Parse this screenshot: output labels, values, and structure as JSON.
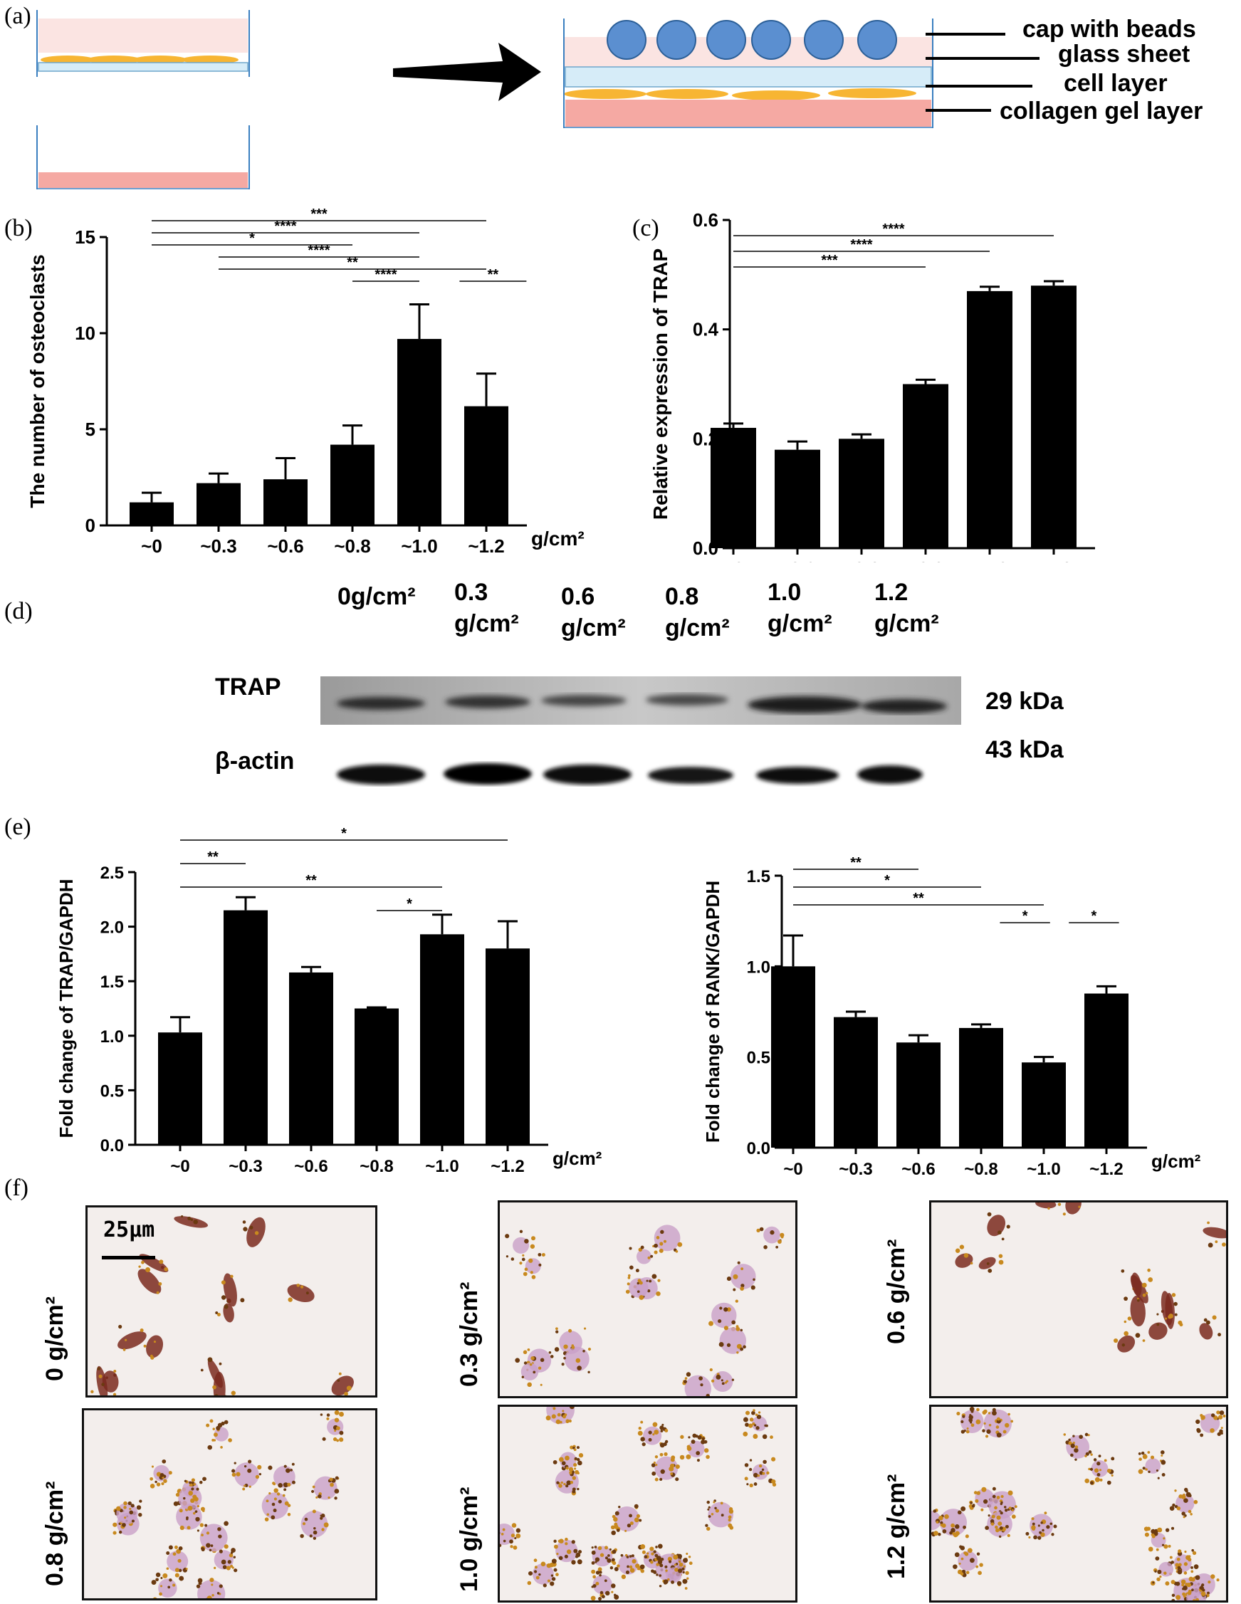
{
  "panels": {
    "a": "(a)",
    "b": "(b)",
    "c": "(c)",
    "d": "(d)",
    "e": "(e)",
    "f": "(f)"
  },
  "diagram": {
    "labels": [
      "cap with beads",
      "glass sheet",
      "cell layer",
      "collagen gel layer"
    ],
    "colors": {
      "bead": "#5b8fd0",
      "cell": "#f7b533",
      "gel": "#f5a9a3",
      "pink": "#fbe4e2"
    }
  },
  "chart_data": [
    {
      "id": "b",
      "type": "bar",
      "ylabel": "The number of osteoclasts",
      "unit": "g/cm²",
      "categories": [
        "~0",
        "~0.3",
        "~0.6",
        "~0.8",
        "~1.0",
        "~1.2"
      ],
      "values": [
        1.2,
        2.2,
        2.4,
        4.2,
        9.7,
        6.2
      ],
      "errors": [
        0.5,
        0.5,
        1.1,
        1.0,
        1.8,
        1.7
      ],
      "ylim": [
        0,
        15
      ],
      "yticks": [
        0,
        5,
        10,
        15
      ],
      "tick_labels": [
        "0",
        "5",
        "10",
        "15"
      ],
      "sig": [
        {
          "from": 0,
          "to": 5,
          "label": "***",
          "level": 0
        },
        {
          "from": 0,
          "to": 4,
          "label": "****",
          "level": 1
        },
        {
          "from": 0,
          "to": 3,
          "label": "*",
          "level": 2
        },
        {
          "from": 1,
          "to": 4,
          "label": "****",
          "level": 3
        },
        {
          "from": 1,
          "to": 5,
          "label": "**",
          "level": 4
        },
        {
          "from": 3,
          "to": 4,
          "label": "****",
          "level": 5
        },
        {
          "from": 4.6,
          "to": 5.6,
          "label": "**",
          "level": 5
        }
      ]
    },
    {
      "id": "c",
      "type": "bar",
      "ylabel": "Relative expression of  TRAP",
      "unit": "",
      "categories": [
        "~0",
        "~0.3",
        "~0.6",
        "~0.8",
        "~1.0",
        "~1.2"
      ],
      "values": [
        0.22,
        0.18,
        0.2,
        0.3,
        0.47,
        0.48
      ],
      "errors": [
        0.008,
        0.015,
        0.008,
        0.008,
        0.008,
        0.008
      ],
      "ylim": [
        0,
        0.6
      ],
      "yticks": [
        0,
        0.2,
        0.4,
        0.6
      ],
      "tick_labels": [
        "0.0",
        "0.2",
        "0.4",
        "0.6"
      ],
      "sig": [
        {
          "from": 0,
          "to": 5,
          "label": "****",
          "level": 0
        },
        {
          "from": 0,
          "to": 4,
          "label": "****",
          "level": 1
        },
        {
          "from": 0,
          "to": 3,
          "label": "***",
          "level": 2
        }
      ]
    },
    {
      "id": "e1",
      "type": "bar",
      "ylabel": "Fold change of TRAP/GAPDH",
      "unit": "g/cm²",
      "categories": [
        "~0",
        "~0.3",
        "~0.6",
        "~0.8",
        "~1.0",
        "~1.2"
      ],
      "values": [
        1.03,
        2.15,
        1.58,
        1.25,
        1.93,
        1.8
      ],
      "errors": [
        0.14,
        0.12,
        0.05,
        0.01,
        0.18,
        0.25
      ],
      "ylim": [
        0,
        2.5
      ],
      "yticks": [
        0,
        0.5,
        1.0,
        1.5,
        2.0,
        2.5
      ],
      "tick_labels": [
        "0.0",
        "0.5",
        "1.0",
        "1.5",
        "2.0",
        "2.5"
      ],
      "sig": [
        {
          "from": 0,
          "to": 5,
          "label": "*",
          "level": 0
        },
        {
          "from": 0,
          "to": 1,
          "label": "**",
          "level": 1
        },
        {
          "from": 0,
          "to": 4,
          "label": "**",
          "level": 2
        },
        {
          "from": 3,
          "to": 4,
          "label": "*",
          "level": 3
        }
      ]
    },
    {
      "id": "e2",
      "type": "bar",
      "ylabel": "Fold change of RANK/GAPDH",
      "unit": "g/cm²",
      "categories": [
        "~0",
        "~0.3",
        "~0.6",
        "~0.8",
        "~1.0",
        "~1.2"
      ],
      "values": [
        1.0,
        0.72,
        0.58,
        0.66,
        0.47,
        0.85
      ],
      "errors": [
        0.17,
        0.03,
        0.04,
        0.02,
        0.03,
        0.04
      ],
      "ylim": [
        0,
        1.5
      ],
      "yticks": [
        0,
        0.5,
        1.0,
        1.5
      ],
      "tick_labels": [
        "0.0",
        "0.5",
        "1.0",
        "1.5"
      ],
      "sig": [
        {
          "from": 0,
          "to": 2,
          "label": "**",
          "level": 0
        },
        {
          "from": 0,
          "to": 3,
          "label": "*",
          "level": 1
        },
        {
          "from": 0,
          "to": 4,
          "label": "**",
          "level": 2
        },
        {
          "from": 3.3,
          "to": 4.1,
          "label": "*",
          "level": 3
        },
        {
          "from": 4.4,
          "to": 5.2,
          "label": "*",
          "level": 3
        }
      ]
    }
  ],
  "blot": {
    "lanes": [
      {
        "top": "",
        "bottom": "0g/cm²"
      },
      {
        "top": "0.3",
        "bottom": "g/cm²"
      },
      {
        "top": "0.6",
        "bottom": "g/cm²"
      },
      {
        "top": "0.8",
        "bottom": "g/cm²"
      },
      {
        "top": "1.0",
        "bottom": "g/cm²"
      },
      {
        "top": "1.2",
        "bottom": "g/cm²"
      }
    ],
    "rows": [
      {
        "name": "TRAP",
        "size": "29 kDa"
      },
      {
        "name": "β-actin",
        "size": "43 kDa"
      }
    ]
  },
  "micrographs": {
    "scale_bar": "25μm",
    "items": [
      {
        "label": "0 g/cm²"
      },
      {
        "label": "0.3 g/cm²"
      },
      {
        "label": "0.6 g/cm²"
      },
      {
        "label": "0.8 g/cm²"
      },
      {
        "label": "1.0 g/cm²"
      },
      {
        "label": "1.2 g/cm²"
      }
    ]
  }
}
